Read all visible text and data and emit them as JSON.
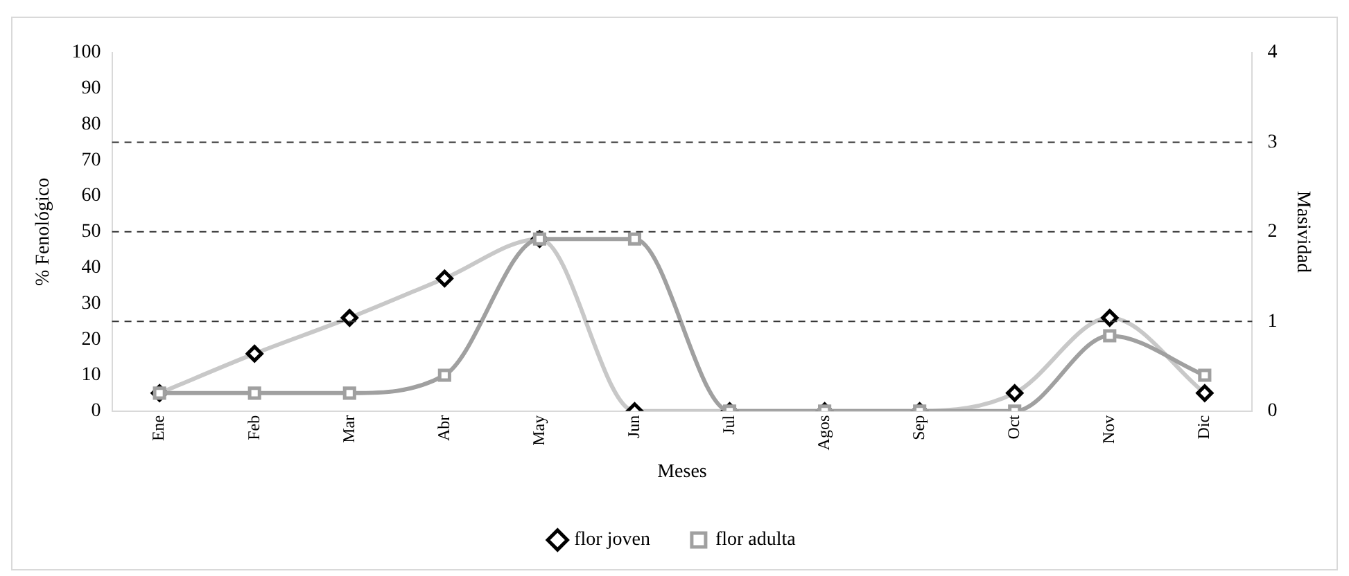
{
  "chart_data": {
    "type": "line",
    "xlabel": "Meses",
    "ylabel": "% Fenológico",
    "y2label": "Masividad",
    "categories": [
      "Ene",
      "Feb",
      "Mar",
      "Abr",
      "May",
      "Jun",
      "Jul",
      "Agos",
      "Sep",
      "Oct",
      "Nov",
      "Dic"
    ],
    "series": [
      {
        "name": "flor joven",
        "color": "#c8c8c8",
        "marker": "diamond",
        "values": [
          5,
          16,
          26,
          37,
          48,
          0,
          0,
          0,
          0,
          5,
          26,
          5
        ]
      },
      {
        "name": "flor adulta",
        "color": "#a0a0a0",
        "marker": "square",
        "values": [
          5,
          5,
          5,
          10,
          48,
          48,
          0,
          0,
          0,
          0,
          21,
          10
        ]
      }
    ],
    "ylim": [
      0,
      100
    ],
    "yticks": [
      0,
      10,
      20,
      30,
      40,
      50,
      60,
      70,
      80,
      90,
      100
    ],
    "y2lim": [
      0,
      4
    ],
    "y2ticks": [
      0,
      1,
      2,
      3,
      4
    ],
    "ref_lines": [
      {
        "axis": "y2",
        "value": 1,
        "color": "#333333",
        "line_style": "dashed"
      },
      {
        "axis": "y2",
        "value": 2,
        "color": "#333333",
        "line_style": "dashed"
      },
      {
        "axis": "y2",
        "value": 3,
        "color": "#333333",
        "line_style": "dashed"
      }
    ],
    "grid": false,
    "legend": "bottom"
  }
}
